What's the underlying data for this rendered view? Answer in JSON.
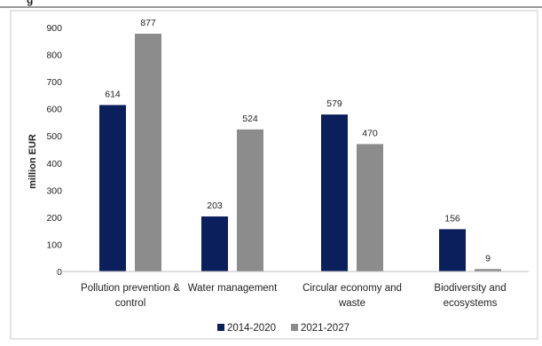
{
  "header": {
    "partial_title": "g"
  },
  "chart_data": {
    "type": "bar",
    "ylabel": "million EUR",
    "xlabel": "",
    "ylim": [
      0,
      900
    ],
    "yticks": [
      0,
      100,
      200,
      300,
      400,
      500,
      600,
      700,
      800,
      900
    ],
    "categories": [
      [
        "Pollution prevention &",
        "control"
      ],
      [
        "Water management"
      ],
      [
        "Circular economy and",
        "waste"
      ],
      [
        "Biodiversity and",
        "ecosystems"
      ]
    ],
    "series": [
      {
        "name": "2014-2020",
        "color": "#0a1f5c",
        "values": [
          614,
          203,
          579,
          156
        ]
      },
      {
        "name": "2021-2027",
        "color": "#8c8c8c",
        "values": [
          877,
          524,
          470,
          9
        ]
      }
    ],
    "grid": false,
    "legend_position": "bottom"
  }
}
